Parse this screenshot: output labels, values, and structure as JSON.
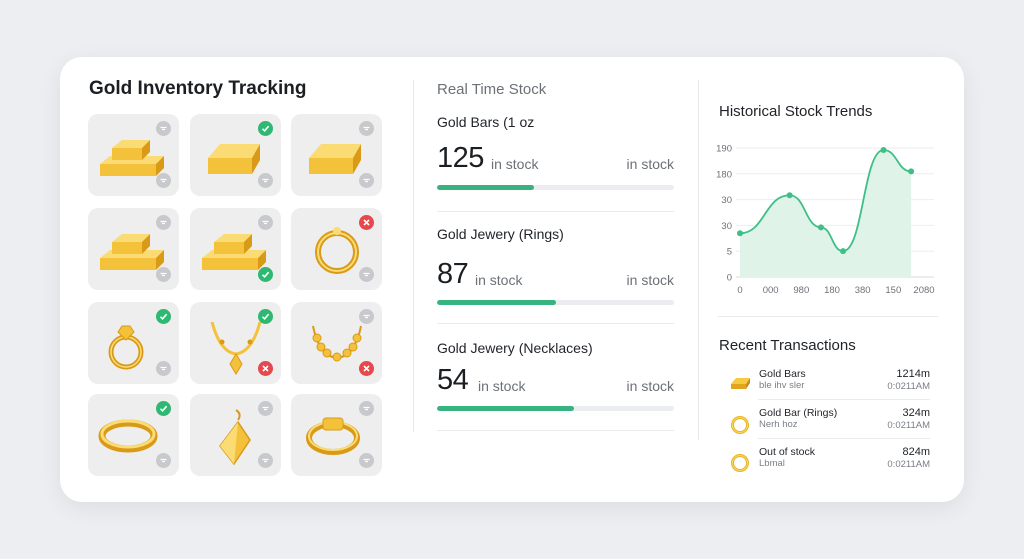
{
  "inventory": {
    "title": "Gold Inventory Tracking",
    "tiles": [
      {
        "item": "gold-bar-stack-icon",
        "top_badge": "gray",
        "bottom_badge": "gray"
      },
      {
        "item": "gold-bar-icon",
        "top_badge": "green",
        "bottom_badge": "gray"
      },
      {
        "item": "gold-bar-icon",
        "top_badge": "gray",
        "bottom_badge": "gray"
      },
      {
        "item": "gold-bar-stack-icon",
        "top_badge": "gray",
        "bottom_badge": "gray"
      },
      {
        "item": "gold-bar-stack-icon",
        "top_badge": "gray",
        "bottom_badge": "green"
      },
      {
        "item": "gold-ring-icon",
        "top_badge": "red",
        "bottom_badge": "gray"
      },
      {
        "item": "gold-diamond-ring-icon",
        "top_badge": "green",
        "bottom_badge": "gray"
      },
      {
        "item": "gold-necklace-icon",
        "top_badge": "green",
        "bottom_badge": "red"
      },
      {
        "item": "gold-bead-necklace-icon",
        "top_badge": "gray",
        "bottom_badge": "red"
      },
      {
        "item": "gold-band-icon",
        "top_badge": "green",
        "bottom_badge": "gray"
      },
      {
        "item": "gold-earring-icon",
        "top_badge": "gray",
        "bottom_badge": "gray"
      },
      {
        "item": "gold-signet-ring-icon",
        "top_badge": "gray",
        "bottom_badge": "gray"
      }
    ]
  },
  "realtime": {
    "title": "Real Time Stock",
    "items": [
      {
        "name": "Gold Bars (1 oz",
        "count": "125",
        "unit": "in stock",
        "unit_right": "in stock",
        "level": 0.41
      },
      {
        "name": "Gold Jewery (Rings)",
        "count": "87",
        "unit": "in stock",
        "unit_right": "in stock",
        "level": 0.5
      },
      {
        "name": "Gold Jewery (Necklaces)",
        "count": "54",
        "unit": "in stock",
        "unit_right": "in stock",
        "level": 0.58
      }
    ]
  },
  "history": {
    "title": "Historical Stock Trends",
    "chart_data": {
      "type": "area",
      "x_ticks": [
        "0",
        "000",
        "980",
        "180",
        "380",
        "150",
        "2080"
      ],
      "y_ticks": [
        "190",
        "180",
        "30",
        "30",
        "5",
        "0"
      ],
      "values": [
        0.3,
        0.62,
        0.35,
        0.15,
        1.0,
        0.82
      ],
      "grid": true
    },
    "colors": {
      "line": "#3fbf86",
      "area": "#dff3e8"
    }
  },
  "transactions": {
    "title": "Recent Transactions",
    "items": [
      {
        "icon": "gold-bar-icon",
        "name": "Gold Bars",
        "sub": "ble ihv sler",
        "amount": "1214m",
        "time": "0:0211AM"
      },
      {
        "icon": "gold-ring-icon",
        "name": "Gold Bar (Rings)",
        "sub": "Nerh hoz",
        "amount": "324m",
        "time": "0:0211AM"
      },
      {
        "icon": "gold-ring-icon",
        "name": "Out of stock",
        "sub": "Lbmal",
        "amount": "824m",
        "time": "0:0211AM"
      }
    ]
  }
}
